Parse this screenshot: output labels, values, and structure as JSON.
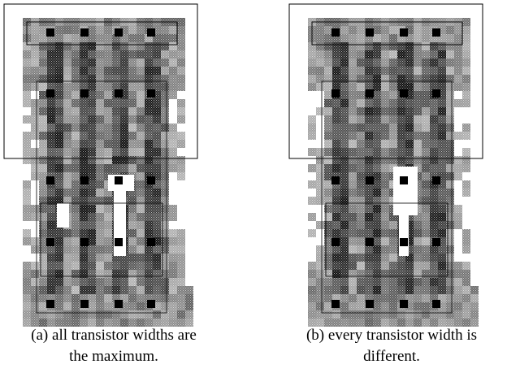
{
  "figures": [
    {
      "caption": [
        "(a) all transistor widths are",
        "the maximum."
      ]
    },
    {
      "caption": [
        "(b) every transistor width is",
        "different."
      ]
    }
  ]
}
